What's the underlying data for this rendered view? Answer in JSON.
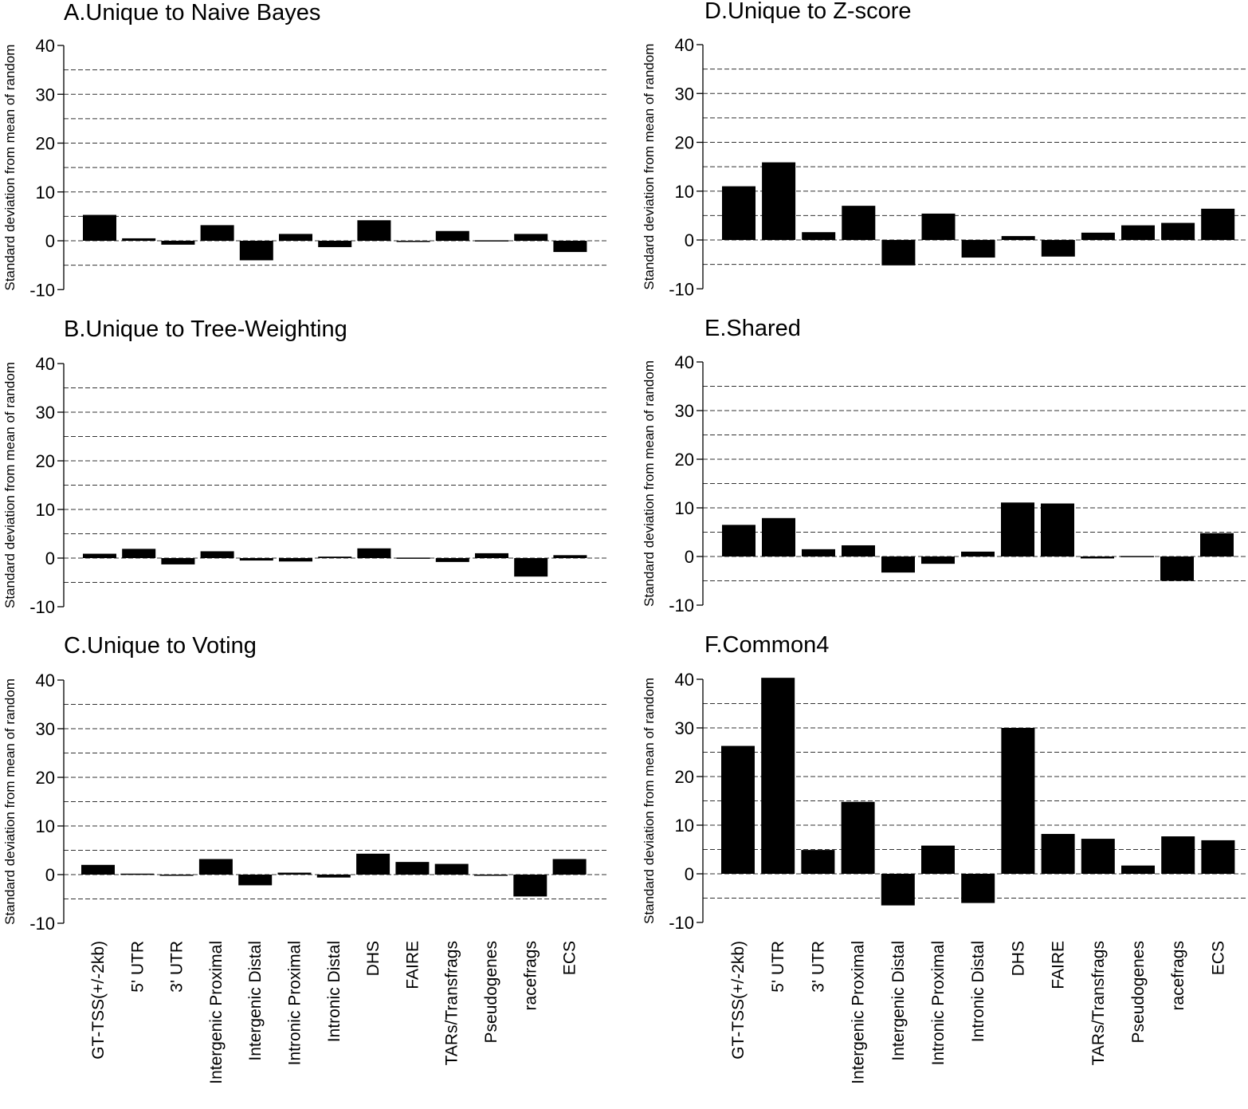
{
  "chart_data": [
    {
      "type": "bar",
      "title": "A.Unique to Naive Bayes",
      "ylabel": "Standard deviation from mean of random",
      "xlabel": "",
      "ylim": [
        -10,
        40
      ],
      "yticks": [
        "-10",
        "0",
        "10",
        "20",
        "30",
        "40"
      ],
      "grid": "dashed every 5",
      "categories": [
        "GT-TSS(+/-2kb)",
        "5' UTR",
        "3' UTR",
        "Intergenic Proximal",
        "Intergenic Distal",
        "Intronic Proximal",
        "Intronic Distal",
        "DHS",
        "FAIRE",
        "TARs/Transfrags",
        "Pseudogenes",
        "racefrags",
        "ECS"
      ],
      "values": [
        5.3,
        0.5,
        -0.8,
        3.2,
        -4.0,
        1.4,
        -1.3,
        4.2,
        -0.2,
        2.0,
        0.1,
        1.4,
        -2.3
      ]
    },
    {
      "type": "bar",
      "title": "B.Unique to Tree-Weighting",
      "ylabel": "Standard deviation from mean of random",
      "xlabel": "",
      "ylim": [
        -10,
        40
      ],
      "yticks": [
        "-10",
        "0",
        "10",
        "20",
        "30",
        "40"
      ],
      "grid": "dashed every 5",
      "categories": [
        "GT-TSS(+/-2kb)",
        "5' UTR",
        "3' UTR",
        "Intergenic Proximal",
        "Intergenic Distal",
        "Intronic Proximal",
        "Intronic Distal",
        "DHS",
        "FAIRE",
        "TARs/Transfrags",
        "Pseudogenes",
        "racefrags",
        "ECS"
      ],
      "values": [
        0.9,
        1.9,
        -1.3,
        1.4,
        -0.5,
        -0.7,
        0.3,
        2.0,
        0.1,
        -0.8,
        1.0,
        -3.8,
        0.6
      ]
    },
    {
      "type": "bar",
      "title": "C.Unique to Voting",
      "ylabel": "Standard deviation from mean of random",
      "xlabel": "",
      "ylim": [
        -10,
        40
      ],
      "yticks": [
        "-10",
        "0",
        "10",
        "20",
        "30",
        "40"
      ],
      "grid": "dashed every 5",
      "categories": [
        "GT-TSS(+/-2kb)",
        "5' UTR",
        "3' UTR",
        "Intergenic Proximal",
        "Intergenic Distal",
        "Intronic Proximal",
        "Intronic Distal",
        "DHS",
        "FAIRE",
        "TARs/Transfrags",
        "Pseudogenes",
        "racefrags",
        "ECS"
      ],
      "values": [
        2.0,
        0.2,
        -0.2,
        3.2,
        -2.2,
        0.4,
        -0.6,
        4.3,
        2.6,
        2.2,
        -0.2,
        -4.5,
        3.2
      ]
    },
    {
      "type": "bar",
      "title": "D.Unique to Z-score",
      "ylabel": "Standard deviation from mean of random",
      "xlabel": "",
      "ylim": [
        -10,
        40
      ],
      "yticks": [
        "-10",
        "0",
        "10",
        "20",
        "30",
        "40"
      ],
      "grid": "dashed every 5",
      "categories": [
        "GT-TSS(+/-2kb)",
        "5' UTR",
        "3' UTR",
        "Intergenic Proximal",
        "Intergenic Distal",
        "Intronic Proximal",
        "Intronic Distal",
        "DHS",
        "FAIRE",
        "TARs/Transfrags",
        "Pseudogenes",
        "racefrags",
        "ECS"
      ],
      "values": [
        11.0,
        15.9,
        1.6,
        7.0,
        -5.2,
        5.4,
        -3.6,
        0.8,
        -3.4,
        1.5,
        3.0,
        3.5,
        6.4
      ]
    },
    {
      "type": "bar",
      "title": "E.Shared",
      "ylabel": "Standard deviation from mean of random",
      "xlabel": "",
      "ylim": [
        -10,
        40
      ],
      "yticks": [
        "-10",
        "0",
        "10",
        "20",
        "30",
        "40"
      ],
      "grid": "dashed every 5",
      "categories": [
        "GT-TSS(+/-2kb)",
        "5' UTR",
        "3' UTR",
        "Intergenic Proximal",
        "Intergenic Distal",
        "Intronic Proximal",
        "Intronic Distal",
        "DHS",
        "FAIRE",
        "TARs/Transfrags",
        "Pseudogenes",
        "racefrags",
        "ECS"
      ],
      "values": [
        6.5,
        7.9,
        1.5,
        2.3,
        -3.3,
        -1.5,
        1.0,
        11.1,
        10.9,
        -0.4,
        0.1,
        -5.0,
        4.8
      ]
    },
    {
      "type": "bar",
      "title": "F.Common4",
      "ylabel": "Standard deviation from mean of random",
      "xlabel": "",
      "ylim": [
        -10,
        40
      ],
      "yticks": [
        "-10",
        "0",
        "10",
        "20",
        "30",
        "40"
      ],
      "grid": "dashed every 5",
      "categories": [
        "GT-TSS(+/-2kb)",
        "5' UTR",
        "3' UTR",
        "Intergenic Proximal",
        "Intergenic Distal",
        "Intronic Proximal",
        "Intronic Distal",
        "DHS",
        "FAIRE",
        "TARs/Transfrags",
        "Pseudogenes",
        "racefrags",
        "ECS"
      ],
      "values": [
        26.3,
        40.3,
        4.9,
        14.8,
        -6.5,
        5.8,
        -6.0,
        30.0,
        8.2,
        7.2,
        1.7,
        7.7,
        6.9
      ]
    }
  ]
}
